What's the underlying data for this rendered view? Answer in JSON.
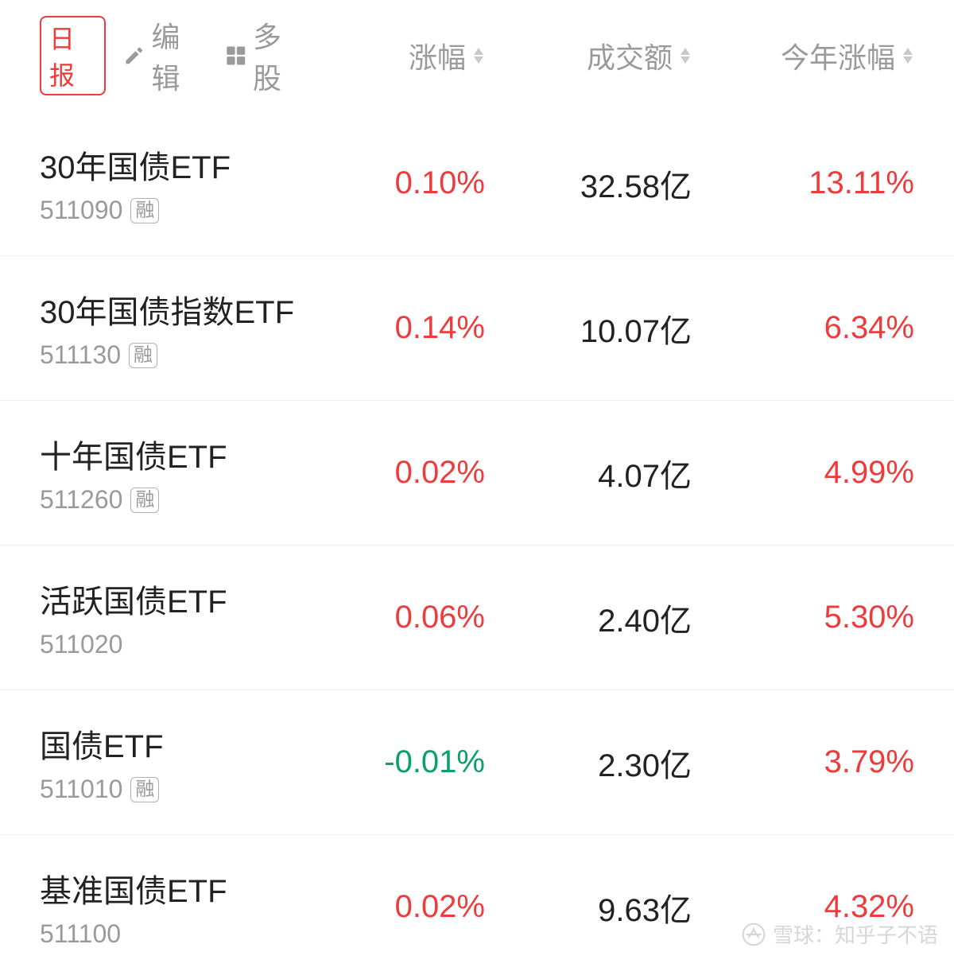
{
  "header": {
    "daily_label": "日报",
    "edit_label": "编辑",
    "multi_label": "多股",
    "columns": {
      "change": "涨幅",
      "volume": "成交额",
      "ytd": "今年涨幅"
    }
  },
  "colors": {
    "up": "#ee3b3b",
    "down": "#0aa06e",
    "text": "#222222",
    "muted": "#9a9a9a",
    "border": "#f0f0f0",
    "background": "#ffffff"
  },
  "badge_label": "融",
  "rows": [
    {
      "name": "30年国债ETF",
      "code": "511090",
      "has_badge": true,
      "change": "0.10%",
      "change_dir": "up",
      "volume": "32.58亿",
      "ytd": "13.11%",
      "ytd_dir": "up"
    },
    {
      "name": "30年国债指数ETF",
      "code": "511130",
      "has_badge": true,
      "change": "0.14%",
      "change_dir": "up",
      "volume": "10.07亿",
      "ytd": "6.34%",
      "ytd_dir": "up"
    },
    {
      "name": "十年国债ETF",
      "code": "511260",
      "has_badge": true,
      "change": "0.02%",
      "change_dir": "up",
      "volume": "4.07亿",
      "ytd": "4.99%",
      "ytd_dir": "up"
    },
    {
      "name": "活跃国债ETF",
      "code": "511020",
      "has_badge": false,
      "change": "0.06%",
      "change_dir": "up",
      "volume": "2.40亿",
      "ytd": "5.30%",
      "ytd_dir": "up"
    },
    {
      "name": "国债ETF",
      "code": "511010",
      "has_badge": true,
      "change": "-0.01%",
      "change_dir": "down",
      "volume": "2.30亿",
      "ytd": "3.79%",
      "ytd_dir": "up"
    },
    {
      "name": "基准国债ETF",
      "code": "511100",
      "has_badge": false,
      "change": "0.02%",
      "change_dir": "up",
      "volume": "9.63亿",
      "ytd": "4.32%",
      "ytd_dir": "up"
    }
  ],
  "watermark": {
    "source": "雪球",
    "author": "知乎子不语"
  }
}
